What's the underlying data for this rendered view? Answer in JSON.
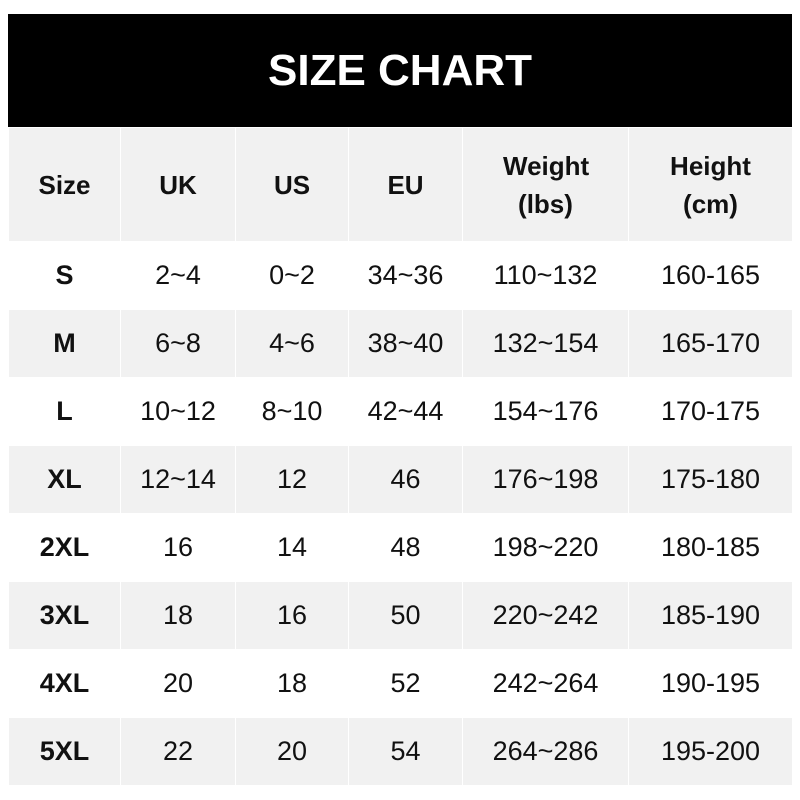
{
  "title": "SIZE CHART",
  "headers": [
    "Size",
    "UK",
    "US",
    "EU",
    "Weight (lbs)",
    "Height (cm)"
  ],
  "rows": [
    [
      "S",
      "2~4",
      "0~2",
      "34~36",
      "110~132",
      "160-165"
    ],
    [
      "M",
      "6~8",
      "4~6",
      "38~40",
      "132~154",
      "165-170"
    ],
    [
      "L",
      "10~12",
      "8~10",
      "42~44",
      "154~176",
      "170-175"
    ],
    [
      "XL",
      "12~14",
      "12",
      "46",
      "176~198",
      "175-180"
    ],
    [
      "2XL",
      "16",
      "14",
      "48",
      "198~220",
      "180-185"
    ],
    [
      "3XL",
      "18",
      "16",
      "50",
      "220~242",
      "185-190"
    ],
    [
      "4XL",
      "20",
      "18",
      "52",
      "242~264",
      "190-195"
    ],
    [
      "5XL",
      "22",
      "20",
      "54",
      "264~286",
      "195-200"
    ]
  ]
}
